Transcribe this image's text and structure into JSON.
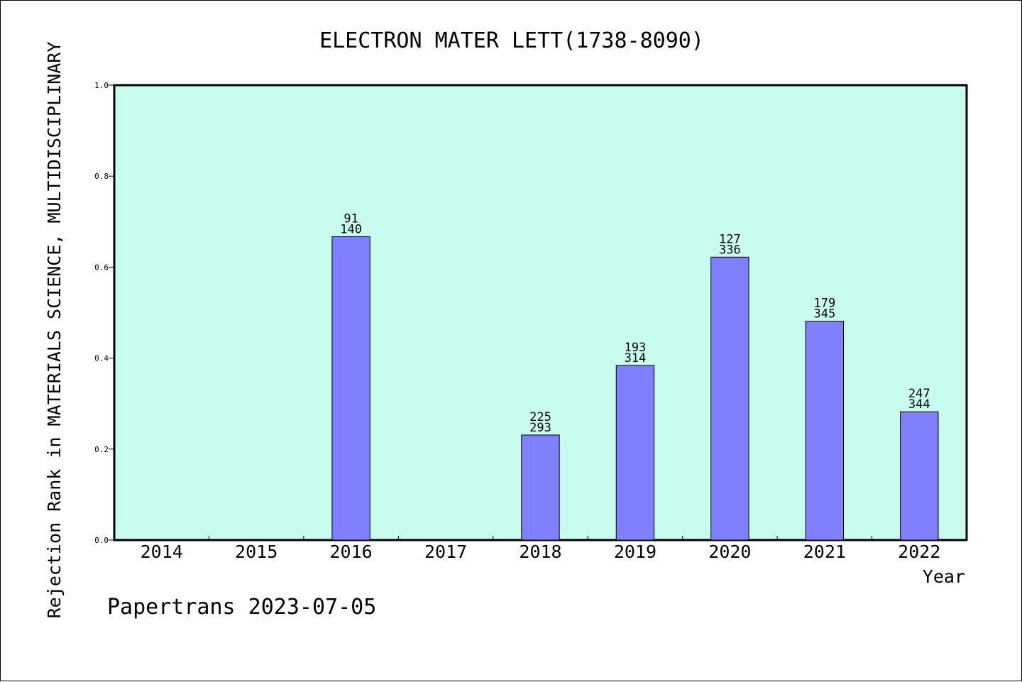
{
  "chart_data": {
    "type": "bar",
    "title": "ELECTRON MATER LETT(1738-8090)",
    "ylabel": "Rejection Rank in MATERIALS SCIENCE, MULTIDISCIPLINARY",
    "xlabel": "Year",
    "ylim": [
      0,
      1.0
    ],
    "yticks": [
      "0.0",
      "0.2",
      "0.4",
      "0.6",
      "0.8",
      "1.0"
    ],
    "ytick_values": [
      0.0,
      0.2,
      0.4,
      0.6,
      0.8,
      1.0
    ],
    "categories": [
      "2014",
      "2015",
      "2016",
      "2017",
      "2018",
      "2019",
      "2020",
      "2021",
      "2022"
    ],
    "values": [
      null,
      null,
      0.667,
      null,
      0.231,
      0.384,
      0.622,
      0.481,
      0.282
    ],
    "bar_labels_top": [
      null,
      null,
      "91",
      null,
      "225",
      "193",
      "127",
      "179",
      "247"
    ],
    "bar_labels_bottom": [
      null,
      null,
      "140",
      null,
      "293",
      "314",
      "336",
      "345",
      "344"
    ],
    "grid": false,
    "colors": {
      "bar": "#8080ff",
      "plot_background": "#c8fcee"
    }
  },
  "footer": {
    "text": "Papertrans 2023-07-05"
  }
}
